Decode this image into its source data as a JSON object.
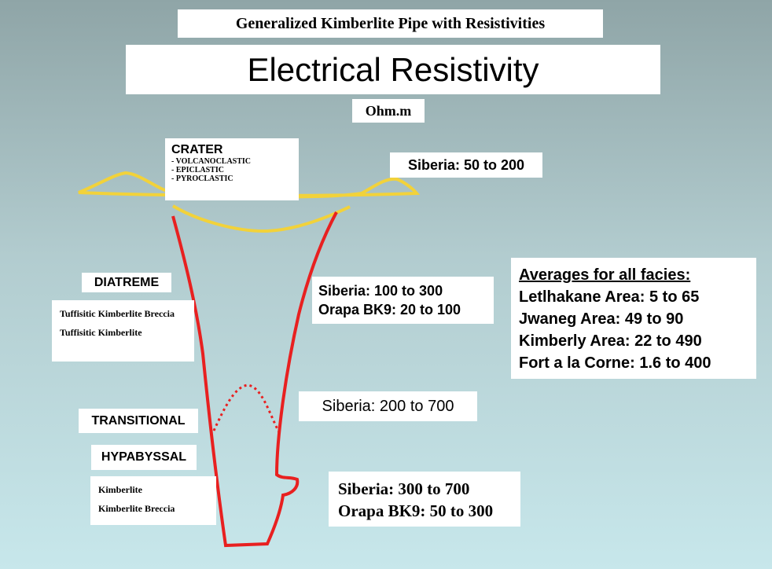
{
  "title": "Generalized Kimberlite Pipe with Resistivities",
  "heading": "Electrical Resistivity",
  "unit": "Ohm.m",
  "facies": [
    {
      "name": "CRATER",
      "rocks": [
        "- VOLCANOCLASTIC",
        "- EPICLASTIC",
        "- PYROCLASTIC"
      ]
    },
    {
      "name": "DIATREME",
      "rocks": [
        "Tuffisitic Kimberlite Breccia",
        "Tuffisitic Kimberlite"
      ]
    },
    {
      "name": "TRANSITIONAL"
    },
    {
      "name": "HYPABYSSAL",
      "rocks": [
        "Kimberlite",
        "Kimberlite Breccia"
      ]
    }
  ],
  "resistivities": [
    [
      "Siberia: 50 to 200"
    ],
    [
      "Siberia: 100 to 300",
      "Orapa BK9: 20 to 100"
    ],
    [
      "Siberia: 200 to 700"
    ],
    [
      "Siberia: 300 to 700",
      "Orapa BK9: 50 to 300"
    ]
  ],
  "averages": {
    "title": "Averages for all facies:",
    "lines": [
      "Letlhakane Area: 5 to 65",
      "Jwaneg Area: 49 to 90",
      "Kimberly Area: 22 to 490",
      "Fort a la Corne: 1.6 to 400"
    ]
  }
}
